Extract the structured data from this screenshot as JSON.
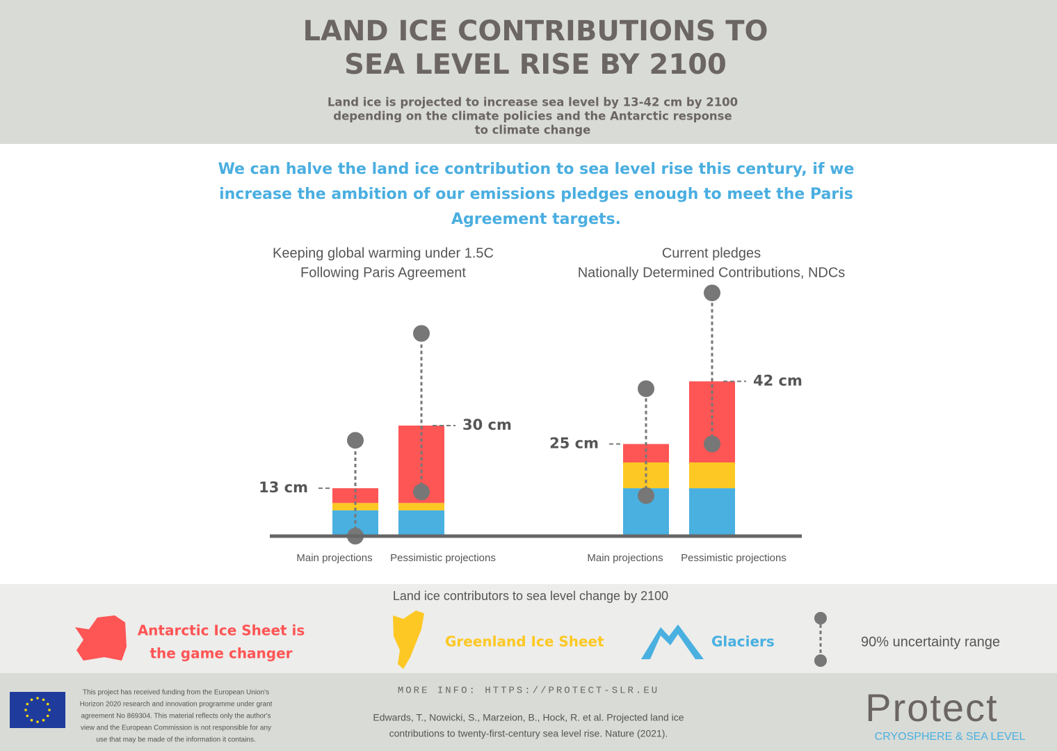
{
  "header": {
    "title": [
      "LAND ICE CONTRIBUTIONS TO",
      "SEA LEVEL RISE BY 2100"
    ],
    "subtitle": [
      "Land ice is projected to increase sea level by 13-42 cm by 2100",
      "depending on the climate policies and the Antarctic response",
      "to climate change"
    ]
  },
  "message": [
    "We can halve the land ice contribution to sea level rise this century, if we",
    "increase the ambition of our emissions pledges enough to meet the Paris",
    "Agreement targets."
  ],
  "chart_data": {
    "type": "bar",
    "stacked": true,
    "groups": [
      [
        "Keeping global warming under 1.5C",
        "Following Paris Agreement"
      ],
      [
        "Current pledges",
        "Nationally Determined Contributions, NDCs"
      ]
    ],
    "categories": [
      "Main projections",
      "Pessimistic projections",
      "Main projections",
      "Pessimistic projections"
    ],
    "series": [
      {
        "color": "#49b0e0",
        "values": [
          7,
          7,
          13,
          13
        ]
      },
      {
        "color": "#fdc823",
        "values": [
          2,
          2,
          7,
          7
        ]
      },
      {
        "color": "#fe5555",
        "values": [
          4,
          21,
          5,
          22
        ]
      }
    ],
    "totals": [
      13,
      30,
      25,
      42
    ],
    "total_labels": [
      "13 cm",
      "30 cm",
      "25 cm",
      "42 cm"
    ],
    "uncertainty": [
      [
        0,
        26
      ],
      [
        12,
        55
      ],
      [
        11,
        40
      ],
      [
        25,
        66
      ]
    ],
    "ylim": [
      0,
      75
    ]
  },
  "legend": {
    "title": "Land ice contributors to sea level change by 2100",
    "items": [
      {
        "lines": [
          "Antarctic Ice Sheet is",
          "the game changer"
        ],
        "color": "#fe5555"
      },
      {
        "lines": [
          "Greenland Ice Sheet"
        ],
        "color": "#fdc823"
      },
      {
        "lines": [
          "Glaciers"
        ],
        "color": "#49b0e0"
      }
    ],
    "range": "90% uncertainty range"
  },
  "footer": {
    "funding": [
      "This project has received funding from the European Union's",
      "Horizon 2020 research and innovation programme under grant",
      "agreement No 869304. This material reflects only the author's",
      "view and the European Commission is not responsible for any",
      "use that may be made of the information it contains."
    ],
    "more_info": "MORE INFO: HTTPS://PROTECT-SLR.EU",
    "citation": [
      "Edwards, T., Nowicki, S., Marzeion, B., Hock, R. et al. Projected land ice",
      "contributions to twenty-first-century sea level rise. Nature (2021)."
    ],
    "logo": "Protect",
    "logo_sub": "CRYOSPHERE & SEA LEVEL"
  }
}
